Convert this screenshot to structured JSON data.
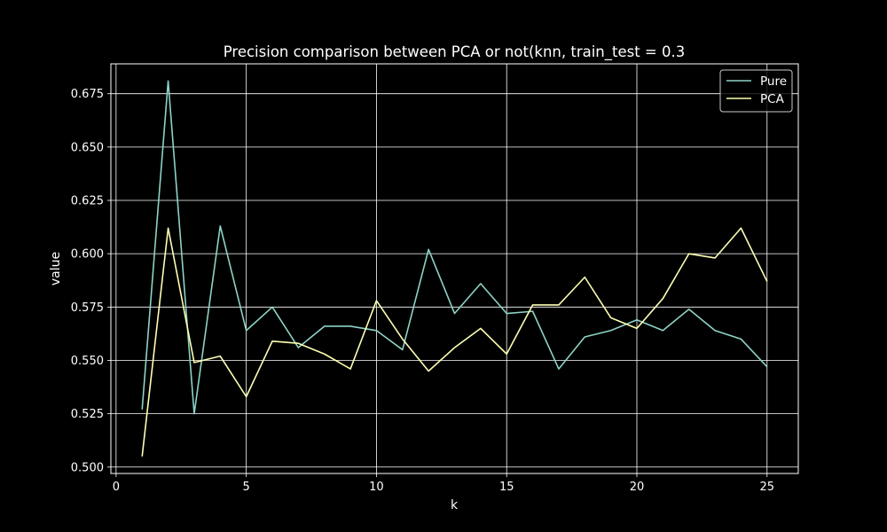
{
  "chart_data": {
    "type": "line",
    "title": "Precision comparison between PCA or not(knn, train_test = 0.3",
    "xlabel": "k",
    "ylabel": "value",
    "xlim": [
      -0.2,
      26.2
    ],
    "ylim": [
      0.497,
      0.689
    ],
    "xticks": [
      0,
      5,
      10,
      15,
      20,
      25
    ],
    "yticks": [
      0.5,
      0.525,
      0.55,
      0.575,
      0.6,
      0.625,
      0.65,
      0.675
    ],
    "xtick_labels": [
      "0",
      "5",
      "10",
      "15",
      "20",
      "25"
    ],
    "ytick_labels": [
      "0.500",
      "0.525",
      "0.550",
      "0.575",
      "0.600",
      "0.625",
      "0.650",
      "0.675"
    ],
    "grid": true,
    "legend_position": "top-right",
    "x": [
      1,
      2,
      3,
      4,
      5,
      6,
      7,
      8,
      9,
      10,
      11,
      12,
      13,
      14,
      15,
      16,
      17,
      18,
      19,
      20,
      21,
      22,
      23,
      24,
      25
    ],
    "series": [
      {
        "name": "Pure",
        "color": "#8dd3c7",
        "values": [
          0.527,
          0.681,
          0.525,
          0.613,
          0.564,
          0.575,
          0.556,
          0.566,
          0.566,
          0.564,
          0.555,
          0.602,
          0.572,
          0.586,
          0.572,
          0.573,
          0.546,
          0.561,
          0.564,
          0.569,
          0.564,
          0.574,
          0.564,
          0.56,
          0.547
        ]
      },
      {
        "name": "PCA",
        "color": "#feffb3",
        "values": [
          0.505,
          0.612,
          0.549,
          0.552,
          0.533,
          0.559,
          0.558,
          0.553,
          0.546,
          0.578,
          0.56,
          0.545,
          0.556,
          0.565,
          0.553,
          0.576,
          0.576,
          0.589,
          0.57,
          0.565,
          0.579,
          0.6,
          0.598,
          0.612,
          0.587
        ]
      }
    ]
  }
}
